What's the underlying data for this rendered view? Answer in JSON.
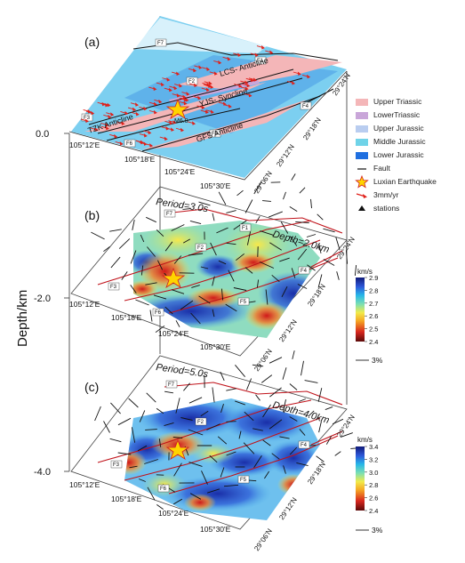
{
  "chart_data": [
    {
      "type": "map-panel",
      "panel_label": "(a)",
      "structures": [
        "LCS- Anticline",
        "YJS- Syncline",
        "TZK Anticline",
        "GFS Anticline"
      ],
      "fault_labels": [
        "F1",
        "F2",
        "F3",
        "F4",
        "F5",
        "F6",
        "F7"
      ],
      "earthquake_label": "M6.0",
      "lon_ticks": [
        "105°12'E",
        "105°18'E",
        "105°24'E",
        "105°30'E"
      ],
      "lat_ticks": [
        "29°06'N",
        "29°12'N",
        "29°18'N",
        "29°24'N"
      ]
    },
    {
      "type": "heatmap",
      "panel_label": "(b)",
      "period": "Period=3.0s",
      "depth": "Depth=2.0km",
      "colorbar": {
        "unit": "km/s",
        "min": 2.4,
        "max": 2.9,
        "ticks": [
          "2.9",
          "2.8",
          "2.7",
          "2.6",
          "2.5",
          "2.4"
        ]
      },
      "fault_labels": [
        "F1",
        "F2",
        "F3",
        "F4",
        "F5",
        "F6",
        "F7"
      ],
      "anisotropy_scale": "3%",
      "lon_ticks": [
        "105°12'E",
        "105°18'E",
        "105°24'E",
        "105°30'E"
      ],
      "lat_ticks": [
        "29°06'N",
        "29°12'N",
        "29°18'N",
        "29°24'N"
      ]
    },
    {
      "type": "heatmap",
      "panel_label": "(c)",
      "period": "Period=5.0s",
      "depth": "Depth=4.0km",
      "colorbar": {
        "unit": "km/s",
        "min": 2.4,
        "max": 3.4,
        "ticks": [
          "3.4",
          "3.2",
          "3.0",
          "2.8",
          "2.6",
          "2.4"
        ]
      },
      "fault_labels": [
        "F2",
        "F3",
        "F4",
        "F5",
        "F6",
        "F7"
      ],
      "anisotropy_scale": "3%",
      "lon_ticks": [
        "105°12'E",
        "105°18'E",
        "105°24'E",
        "105°30'E"
      ],
      "lat_ticks": [
        "29°06'N",
        "29°12'N",
        "29°18'N",
        "29°24'N"
      ]
    }
  ],
  "depth_axis": {
    "label": "Depth/km",
    "ticks": [
      "0.0",
      "-2.0",
      "-4.0"
    ],
    "values": [
      0.0,
      -2.0,
      -4.0
    ]
  },
  "legend": [
    {
      "label": "Upper Triassic",
      "color": "#f4b6b8",
      "kind": "swatch"
    },
    {
      "label": "LowerTriassic",
      "color": "#c9a6d9",
      "kind": "swatch"
    },
    {
      "label": "Upper Jurassic",
      "color": "#b9cdf0",
      "kind": "swatch"
    },
    {
      "label": "Middle Jurassic",
      "color": "#6fd3e8",
      "kind": "swatch"
    },
    {
      "label": "Lower Jurassic",
      "color": "#1f6fe0",
      "kind": "swatch"
    },
    {
      "label": "Fault",
      "color": "#111111",
      "kind": "line"
    },
    {
      "label": "Luxian Earthquake",
      "color": "#ffd400",
      "kind": "star"
    },
    {
      "label": "3mm/yr",
      "color": "#e0201a",
      "kind": "arrow"
    },
    {
      "label": "stations",
      "color": "#111111",
      "kind": "triangle"
    }
  ]
}
